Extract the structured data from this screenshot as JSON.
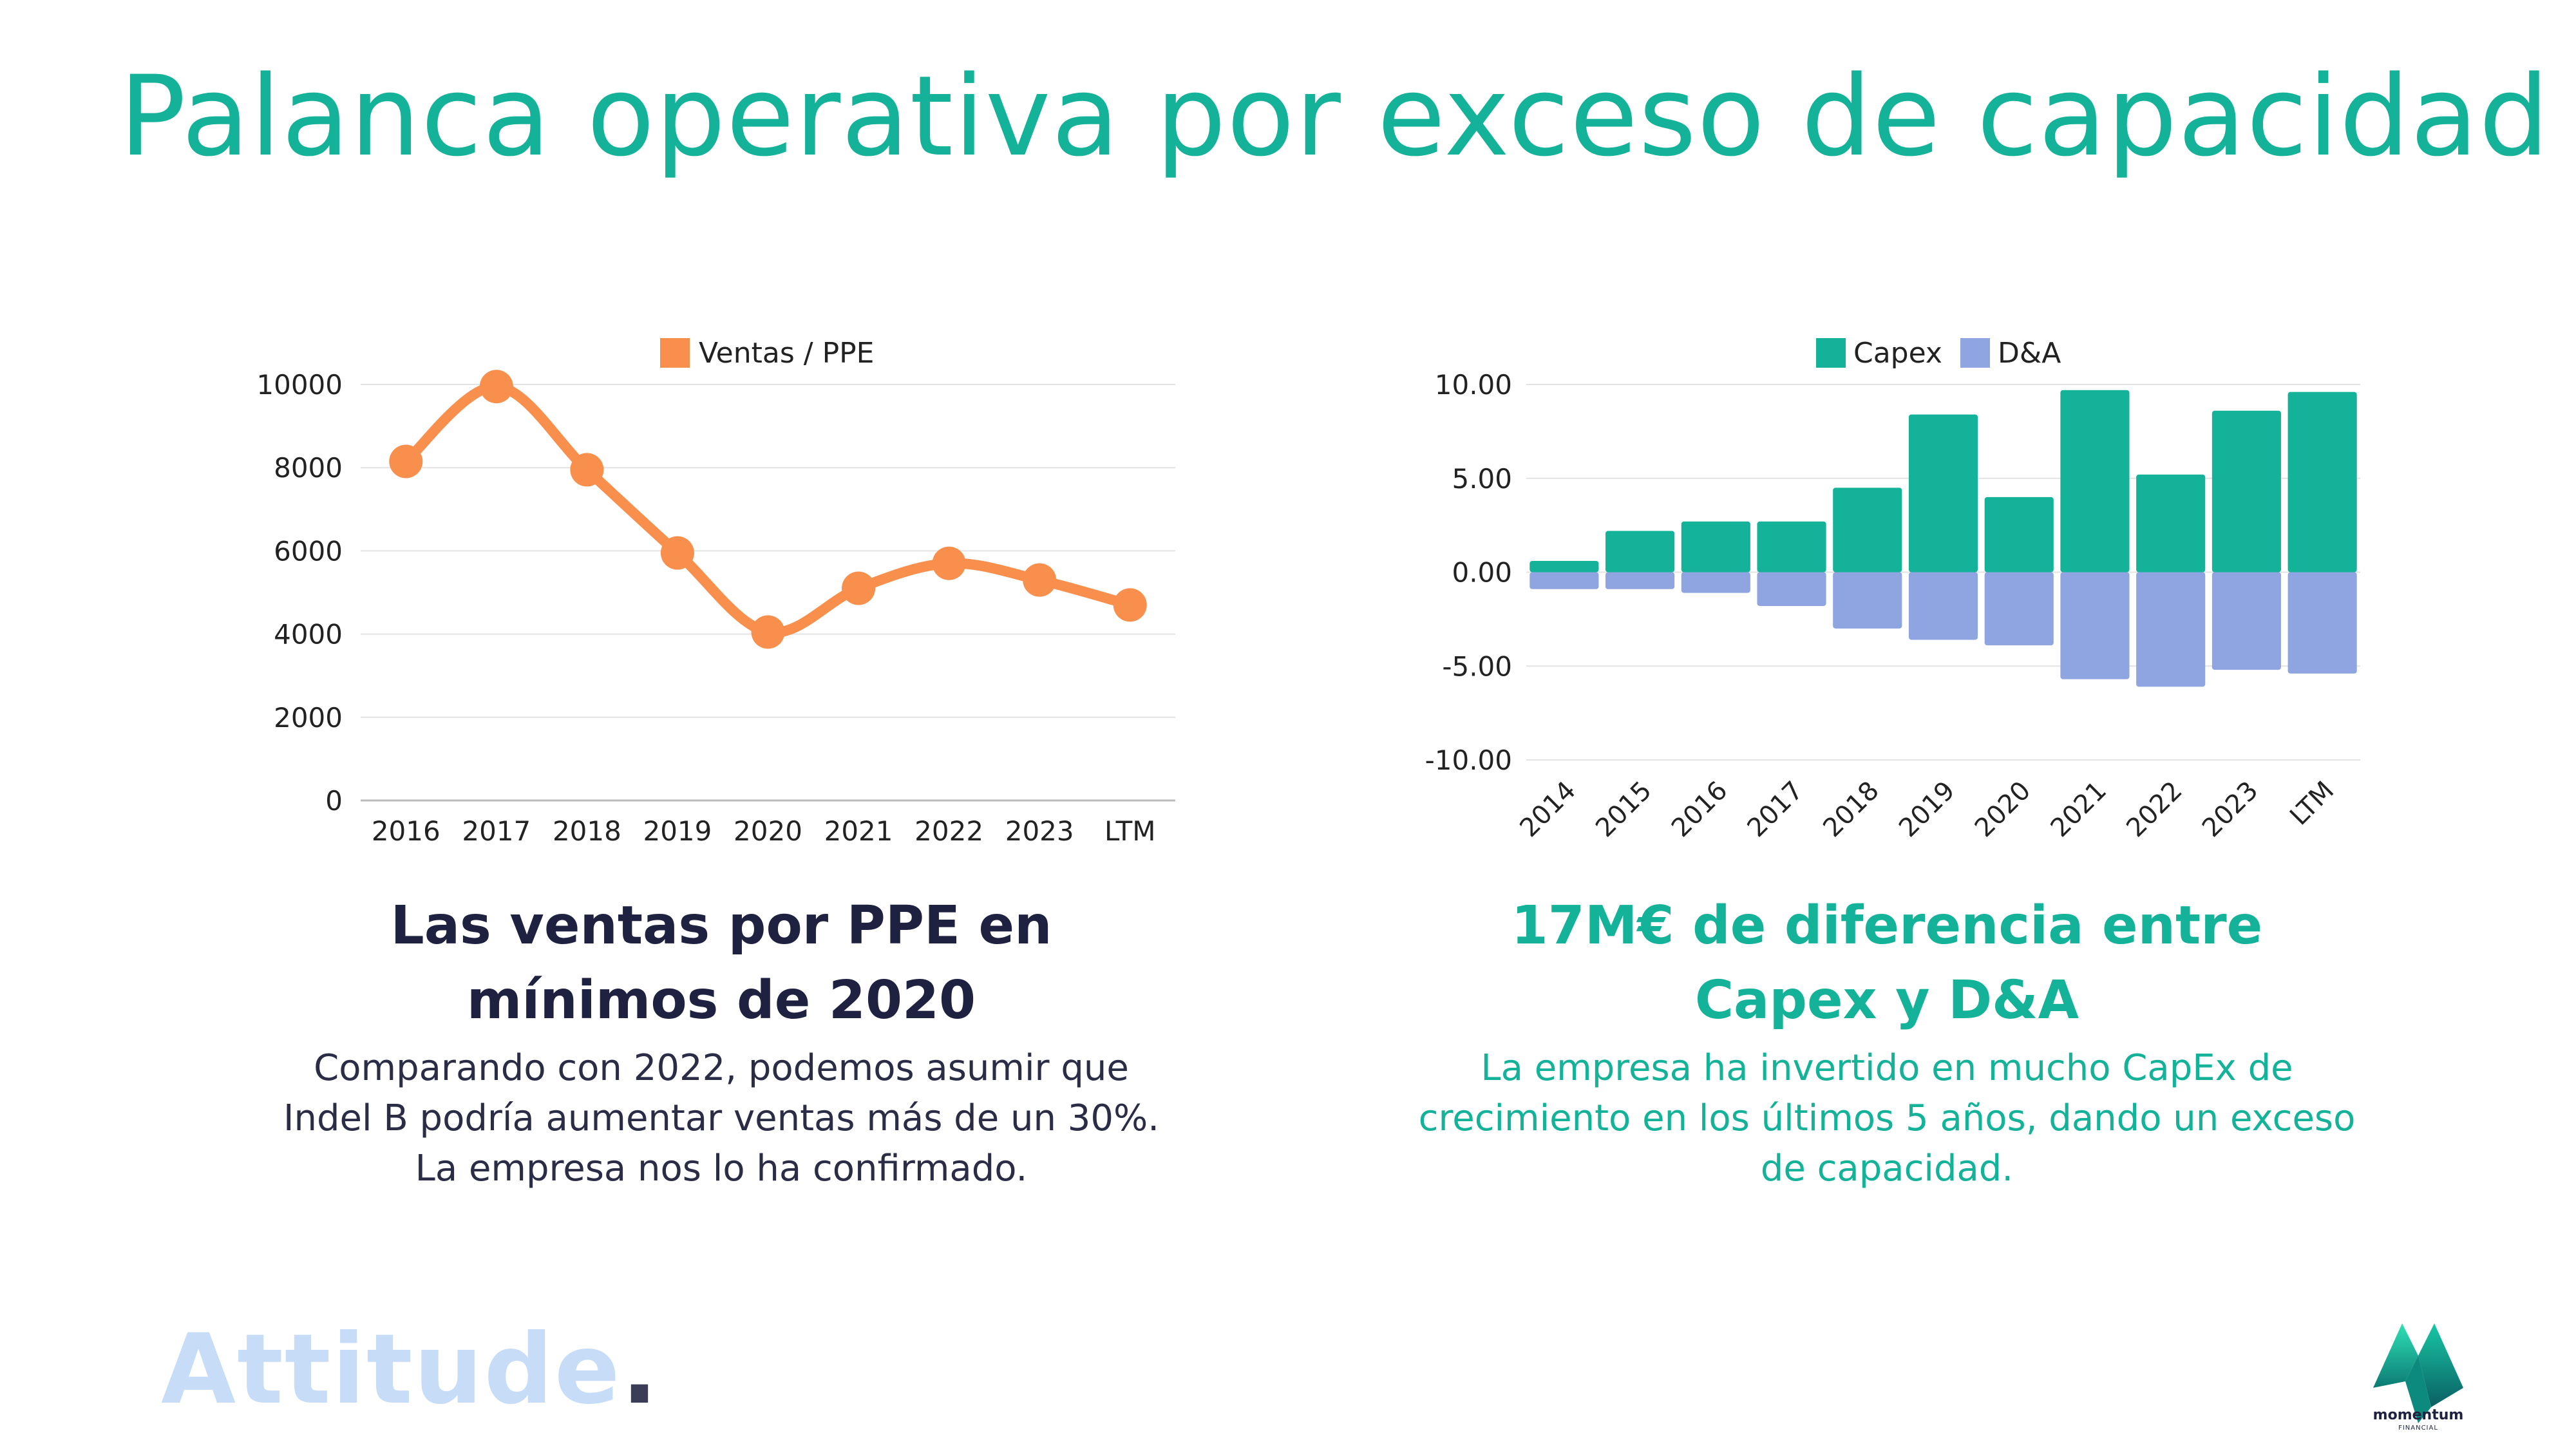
{
  "title": "Palanca operativa por exceso de capacidad",
  "colors": {
    "teal": "#14b298",
    "orange": "#f98f4c",
    "lavender": "#8fa5e2",
    "dark": "#1e2240"
  },
  "left": {
    "heading": "Las ventas por PPE en mínimos de 2020",
    "body": "Comparando con 2022, podemos asumir que Indel B podría aumentar ventas más de un 30%. La empresa nos lo ha confirmado."
  },
  "right": {
    "heading": "17M€ de diferencia entre Capex y D&A",
    "body": "La empresa ha invertido en mucho CapEx de crecimiento en los últimos 5 años, dando un exceso de capacidad."
  },
  "footer": {
    "brand": "Attitude",
    "brand_dot": ".",
    "logo_name": "momentum",
    "logo_sub": "FINANCIAL",
    "logo_icon": "momentum-m-icon"
  },
  "chart_data": [
    {
      "type": "line",
      "categories": [
        "2016",
        "2017",
        "2018",
        "2019",
        "2020",
        "2021",
        "2022",
        "2023",
        "LTM"
      ],
      "series": [
        {
          "name": "Ventas / PPE",
          "values": [
            8150,
            9950,
            7950,
            5950,
            4050,
            5100,
            5700,
            5300,
            4700
          ]
        }
      ],
      "ylim": [
        0,
        10000
      ],
      "yticks": [
        "0",
        "2000",
        "4000",
        "6000",
        "8000",
        "10000"
      ],
      "grid": true,
      "legend": "top-center"
    },
    {
      "type": "bar",
      "stacked": true,
      "categories": [
        "2014",
        "2015",
        "2016",
        "2017",
        "2018",
        "2019",
        "2020",
        "2021",
        "2022",
        "2023",
        "LTM"
      ],
      "series": [
        {
          "name": "Capex",
          "values": [
            0.6,
            2.2,
            2.7,
            2.7,
            4.5,
            8.4,
            4.0,
            9.7,
            5.2,
            8.6,
            9.6
          ]
        },
        {
          "name": "D&A",
          "values": [
            -0.9,
            -0.9,
            -1.1,
            -1.8,
            -3.0,
            -3.6,
            -3.9,
            -5.7,
            -6.1,
            -5.2,
            -5.4
          ]
        }
      ],
      "ylim": [
        -10,
        10
      ],
      "yticks": [
        "-10.00",
        "-5.00",
        "0.00",
        "5.00",
        "10.00"
      ],
      "grid": true,
      "legend": "top-center"
    }
  ]
}
